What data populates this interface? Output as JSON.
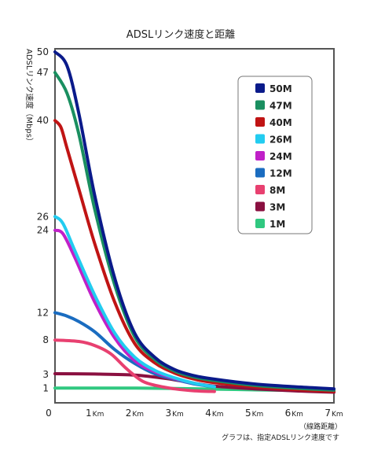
{
  "chart_data": {
    "type": "line",
    "title": "ADSLリンク速度と距離",
    "ylabel": "ADSLリンク速度（Mbps）",
    "xlabel": "（線路距離）",
    "note": "グラフは、指定ADSLリンク速度です",
    "xlim": [
      0,
      7
    ],
    "ylim": [
      0,
      50
    ],
    "origin_label": "0",
    "yticks": [
      1,
      3,
      8,
      12,
      24,
      26,
      40,
      47,
      50
    ],
    "xticks": [
      {
        "value": 1,
        "num": "1",
        "unit": "Km"
      },
      {
        "value": 2,
        "num": "2",
        "unit": "Km"
      },
      {
        "value": 3,
        "num": "3",
        "unit": "Km"
      },
      {
        "value": 4,
        "num": "4",
        "unit": "Km"
      },
      {
        "value": 5,
        "num": "5",
        "unit": "Km"
      },
      {
        "value": 6,
        "num": "6",
        "unit": "Km"
      },
      {
        "value": 7,
        "num": "7",
        "unit": "Km"
      }
    ],
    "legend_position": "top-right",
    "series": [
      {
        "name": "50M",
        "color": "#0a1a8a",
        "points": [
          [
            0,
            50
          ],
          [
            0.3,
            48
          ],
          [
            0.6,
            41
          ],
          [
            1.0,
            29
          ],
          [
            1.5,
            17
          ],
          [
            2.0,
            9
          ],
          [
            2.5,
            5.5
          ],
          [
            3.0,
            3.7
          ],
          [
            3.5,
            2.8
          ],
          [
            4.0,
            2.3
          ],
          [
            5.0,
            1.6
          ],
          [
            6.0,
            1.2
          ],
          [
            7.0,
            0.9
          ]
        ]
      },
      {
        "name": "47M",
        "color": "#1a8f60",
        "points": [
          [
            0,
            47
          ],
          [
            0.3,
            44
          ],
          [
            0.6,
            38
          ],
          [
            1.0,
            27
          ],
          [
            1.5,
            16
          ],
          [
            2.0,
            8.5
          ],
          [
            2.5,
            5.2
          ],
          [
            3.0,
            3.5
          ],
          [
            3.5,
            2.6
          ],
          [
            4.0,
            2.1
          ],
          [
            5.0,
            1.4
          ],
          [
            6.0,
            1.0
          ],
          [
            7.0,
            0.7
          ]
        ]
      },
      {
        "name": "40M",
        "color": "#c01414",
        "points": [
          [
            0,
            40
          ],
          [
            0.15,
            39
          ],
          [
            0.3,
            36
          ],
          [
            0.6,
            30
          ],
          [
            1.0,
            22
          ],
          [
            1.5,
            13.5
          ],
          [
            2.0,
            7.5
          ],
          [
            2.5,
            4.7
          ],
          [
            3.0,
            3.2
          ],
          [
            3.5,
            2.3
          ],
          [
            4.0,
            1.8
          ],
          [
            5.0,
            1.2
          ],
          [
            6.0,
            0.8
          ],
          [
            7.0,
            0.5
          ]
        ]
      },
      {
        "name": "26M",
        "color": "#22ccf0",
        "points": [
          [
            0,
            26
          ],
          [
            0.2,
            25
          ],
          [
            0.5,
            21
          ],
          [
            1.0,
            14.5
          ],
          [
            1.5,
            9
          ],
          [
            2.0,
            5.5
          ],
          [
            2.5,
            3.6
          ],
          [
            3.0,
            2.5
          ],
          [
            3.5,
            1.7
          ],
          [
            4.0,
            1.2
          ]
        ]
      },
      {
        "name": "24M",
        "color": "#c020c8",
        "points": [
          [
            0,
            24
          ],
          [
            0.2,
            23.5
          ],
          [
            0.5,
            20
          ],
          [
            1.0,
            13.5
          ],
          [
            1.5,
            8.3
          ],
          [
            2.0,
            5.0
          ],
          [
            2.5,
            3.4
          ],
          [
            3.0,
            2.4
          ],
          [
            3.5,
            1.7
          ],
          [
            4.0,
            1.2
          ]
        ]
      },
      {
        "name": "12M",
        "color": "#1a6cc0",
        "points": [
          [
            0,
            12
          ],
          [
            0.3,
            11.5
          ],
          [
            0.6,
            10.7
          ],
          [
            1.0,
            9.2
          ],
          [
            1.5,
            6.6
          ],
          [
            2.0,
            4.6
          ],
          [
            2.5,
            3.1
          ],
          [
            3.0,
            2.3
          ],
          [
            3.5,
            1.6
          ],
          [
            4.0,
            1.2
          ]
        ]
      },
      {
        "name": "8M",
        "color": "#e84070",
        "points": [
          [
            0,
            8
          ],
          [
            0.6,
            7.8
          ],
          [
            1.0,
            7.2
          ],
          [
            1.4,
            6.0
          ],
          [
            1.8,
            3.8
          ],
          [
            2.2,
            2.0
          ],
          [
            2.6,
            1.3
          ],
          [
            3.0,
            0.9
          ],
          [
            3.5,
            0.6
          ],
          [
            4.0,
            0.5
          ]
        ]
      },
      {
        "name": "3M",
        "color": "#8a1040",
        "points": [
          [
            0,
            3.1
          ],
          [
            1.0,
            3.05
          ],
          [
            2.0,
            2.9
          ],
          [
            2.8,
            2.4
          ],
          [
            3.4,
            1.8
          ],
          [
            4.0,
            1.3
          ],
          [
            5.0,
            0.9
          ],
          [
            6.0,
            0.6
          ],
          [
            7.0,
            0.4
          ]
        ]
      },
      {
        "name": "1M",
        "color": "#30c880",
        "points": [
          [
            0,
            1.0
          ],
          [
            1.0,
            1.0
          ],
          [
            2.0,
            1.0
          ],
          [
            3.0,
            0.95
          ],
          [
            4.0,
            0.85
          ],
          [
            5.0,
            0.75
          ],
          [
            6.0,
            0.65
          ],
          [
            7.0,
            0.55
          ]
        ]
      }
    ]
  }
}
